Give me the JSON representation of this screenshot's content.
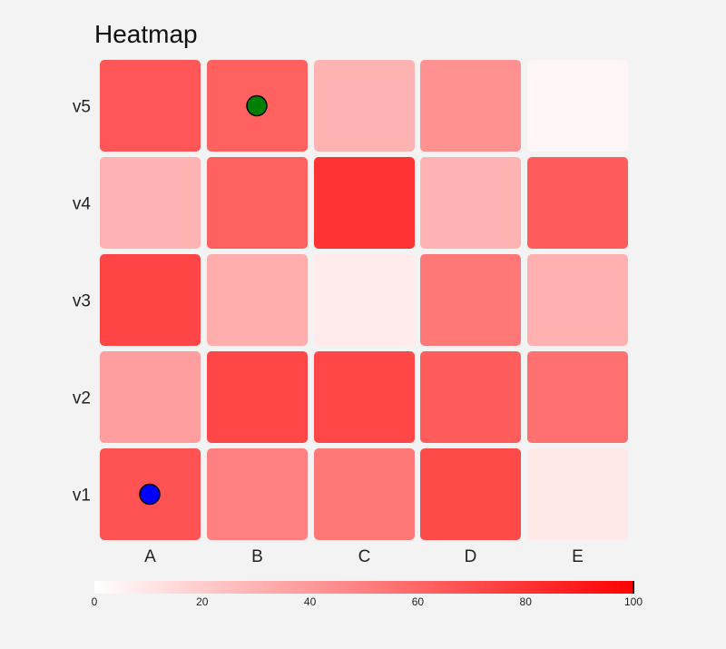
{
  "chart_data": {
    "type": "heatmap",
    "title": "Heatmap",
    "x_categories": [
      "A",
      "B",
      "C",
      "D",
      "E"
    ],
    "y_categories": [
      "v1",
      "v2",
      "v3",
      "v4",
      "v5"
    ],
    "values": {
      "v5": [
        66,
        62,
        30,
        43,
        3
      ],
      "v4": [
        30,
        62,
        80,
        30,
        64
      ],
      "v3": [
        73,
        32,
        8,
        53,
        31
      ],
      "v2": [
        38,
        72,
        72,
        64,
        56
      ],
      "v1": [
        68,
        50,
        53,
        71,
        9
      ]
    },
    "colorscale": {
      "min": 0,
      "max": 100,
      "low_color": "#ffffff",
      "high_color": "#ff0000"
    },
    "colorbar_ticks": [
      "0",
      "20",
      "40",
      "60",
      "80",
      "100"
    ],
    "markers": [
      {
        "x": "A",
        "y": "v1",
        "color": "#0000ff"
      },
      {
        "x": "B",
        "y": "v5",
        "color": "#008000"
      }
    ],
    "legend": "bottom"
  }
}
